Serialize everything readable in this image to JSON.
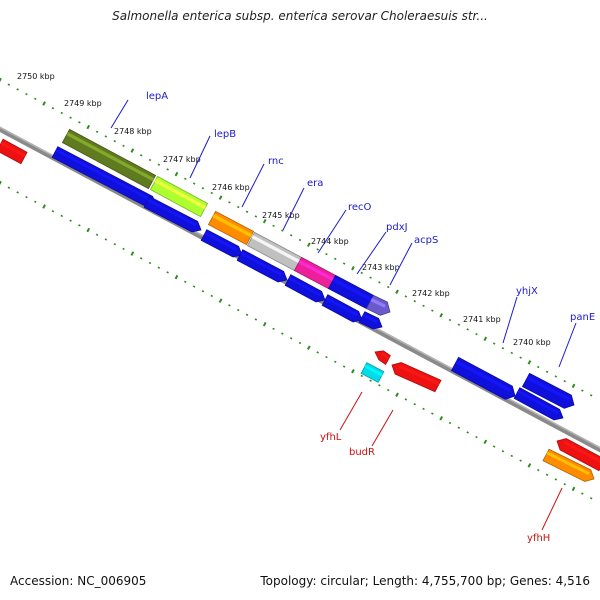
{
  "title": "Salmonella enterica subsp. enterica serovar Choleraesuis str...",
  "footer": {
    "accession": "Accession: NC_006905",
    "summary": "Topology: circular; Length: 4,755,700 bp; Genes: 4,516"
  },
  "colors": {
    "background": "#ffffff",
    "backbone": "#8a8a8a",
    "tick": "#2e8b1e",
    "forward_label": "#1a1acc",
    "reverse_label": "#cc1111"
  },
  "ticks": [
    {
      "label": "2750 kbp"
    },
    {
      "label": "2749 kbp"
    },
    {
      "label": "2748 kbp"
    },
    {
      "label": "2747 kbp"
    },
    {
      "label": "2746 kbp"
    },
    {
      "label": "2745 kbp"
    },
    {
      "label": "2744 kbp"
    },
    {
      "label": "2743 kbp"
    },
    {
      "label": "2742 kbp"
    },
    {
      "label": "2741 kbp"
    },
    {
      "label": "2740 kbp"
    }
  ],
  "forward_genes": [
    {
      "label": "lepA",
      "color": "#5f7a1f"
    },
    {
      "label": "lepB",
      "color": "#adff2f"
    },
    {
      "label": "rnc",
      "color": "#ff8c00"
    },
    {
      "label": "era",
      "color": "#c0c0c0"
    },
    {
      "label": "recO",
      "color": "#ee1f9a"
    },
    {
      "label": "pdxJ",
      "color": "#1010dd"
    },
    {
      "label": "acpS",
      "color": "#6a5acd"
    },
    {
      "label": "yhjX",
      "color": "#1010dd"
    },
    {
      "label": "panE",
      "color": "#1010dd"
    }
  ],
  "reverse_genes": [
    {
      "label": "yfhL",
      "color": "#00dde8"
    },
    {
      "label": "budR",
      "color": "#ee1111"
    },
    {
      "label": "yfhH",
      "color": "#ff8c00"
    }
  ]
}
